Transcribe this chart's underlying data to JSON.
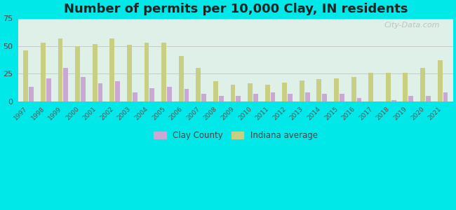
{
  "title": "Number of permits per 10,000 Clay, IN residents",
  "years": [
    1997,
    1998,
    1999,
    2000,
    2001,
    2002,
    2003,
    2004,
    2005,
    2006,
    2007,
    2008,
    2009,
    2010,
    2011,
    2012,
    2013,
    2014,
    2015,
    2016,
    2017,
    2018,
    2019,
    2020,
    2021
  ],
  "clay_county": [
    13,
    21,
    30,
    22,
    16,
    18,
    8,
    12,
    13,
    11,
    7,
    5,
    5,
    7,
    8,
    7,
    8,
    7,
    7,
    3,
    0,
    1,
    5,
    5,
    8
  ],
  "indiana_avg": [
    46,
    53,
    57,
    50,
    52,
    57,
    51,
    53,
    53,
    41,
    30,
    18,
    15,
    16,
    15,
    17,
    19,
    20,
    21,
    22,
    26,
    26,
    26,
    30,
    37
  ],
  "clay_color": "#c9a8d4",
  "indiana_color": "#c8cf82",
  "background_outer": "#00e8e8",
  "background_plot_top": "#d0efe8",
  "background_plot_bottom": "#e8f5e0",
  "ylim": [
    0,
    75
  ],
  "yticks": [
    0,
    25,
    50,
    75
  ],
  "title_fontsize": 13,
  "legend_labels": [
    "Clay County",
    "Indiana average"
  ]
}
